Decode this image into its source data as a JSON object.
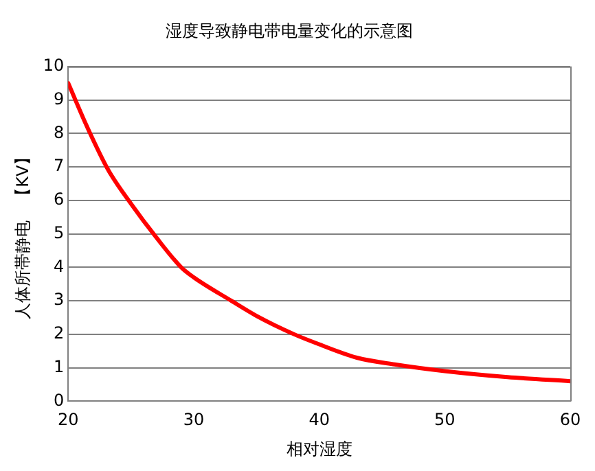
{
  "chart_data": {
    "type": "line",
    "title": "湿度导致静电带电量变化的示意图",
    "xlabel": "相对湿度",
    "ylabel": "人体所帯静电　【KV】",
    "x": [
      20,
      21.5,
      23.2,
      25,
      27,
      29,
      30,
      33,
      35,
      38,
      40,
      43,
      46,
      50,
      55,
      60
    ],
    "series": [
      {
        "color": "#ff0000",
        "values": [
          9.5,
          8.2,
          6.9,
          5.9,
          4.9,
          4.0,
          3.7,
          3.0,
          2.55,
          2.0,
          1.7,
          1.3,
          1.1,
          0.9,
          0.72,
          0.6
        ]
      }
    ],
    "xlim": [
      20,
      60
    ],
    "xticks": [
      20,
      30,
      40,
      50,
      60
    ],
    "ylim": [
      0,
      10
    ],
    "yticks": [
      0,
      1,
      2,
      3,
      4,
      5,
      6,
      7,
      8,
      9,
      10
    ],
    "grid": "y",
    "legend": false,
    "marker": "none",
    "line_style": "solid"
  }
}
